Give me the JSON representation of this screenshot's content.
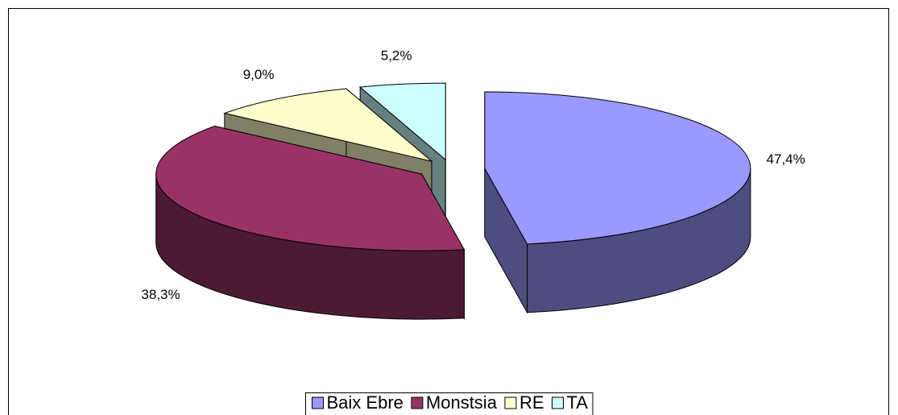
{
  "chart_data": {
    "type": "pie3d",
    "categories": [
      "Baix Ebre",
      "Monstsia",
      "RE",
      "TA"
    ],
    "values": [
      47.4,
      38.3,
      9.0,
      5.2
    ],
    "value_labels": [
      "47,4%",
      "38,3%",
      "9,0%",
      "5,2%"
    ],
    "colors": [
      "#9999ff",
      "#993366",
      "#ffffcc",
      "#ccffff"
    ],
    "legend": "bottom"
  }
}
